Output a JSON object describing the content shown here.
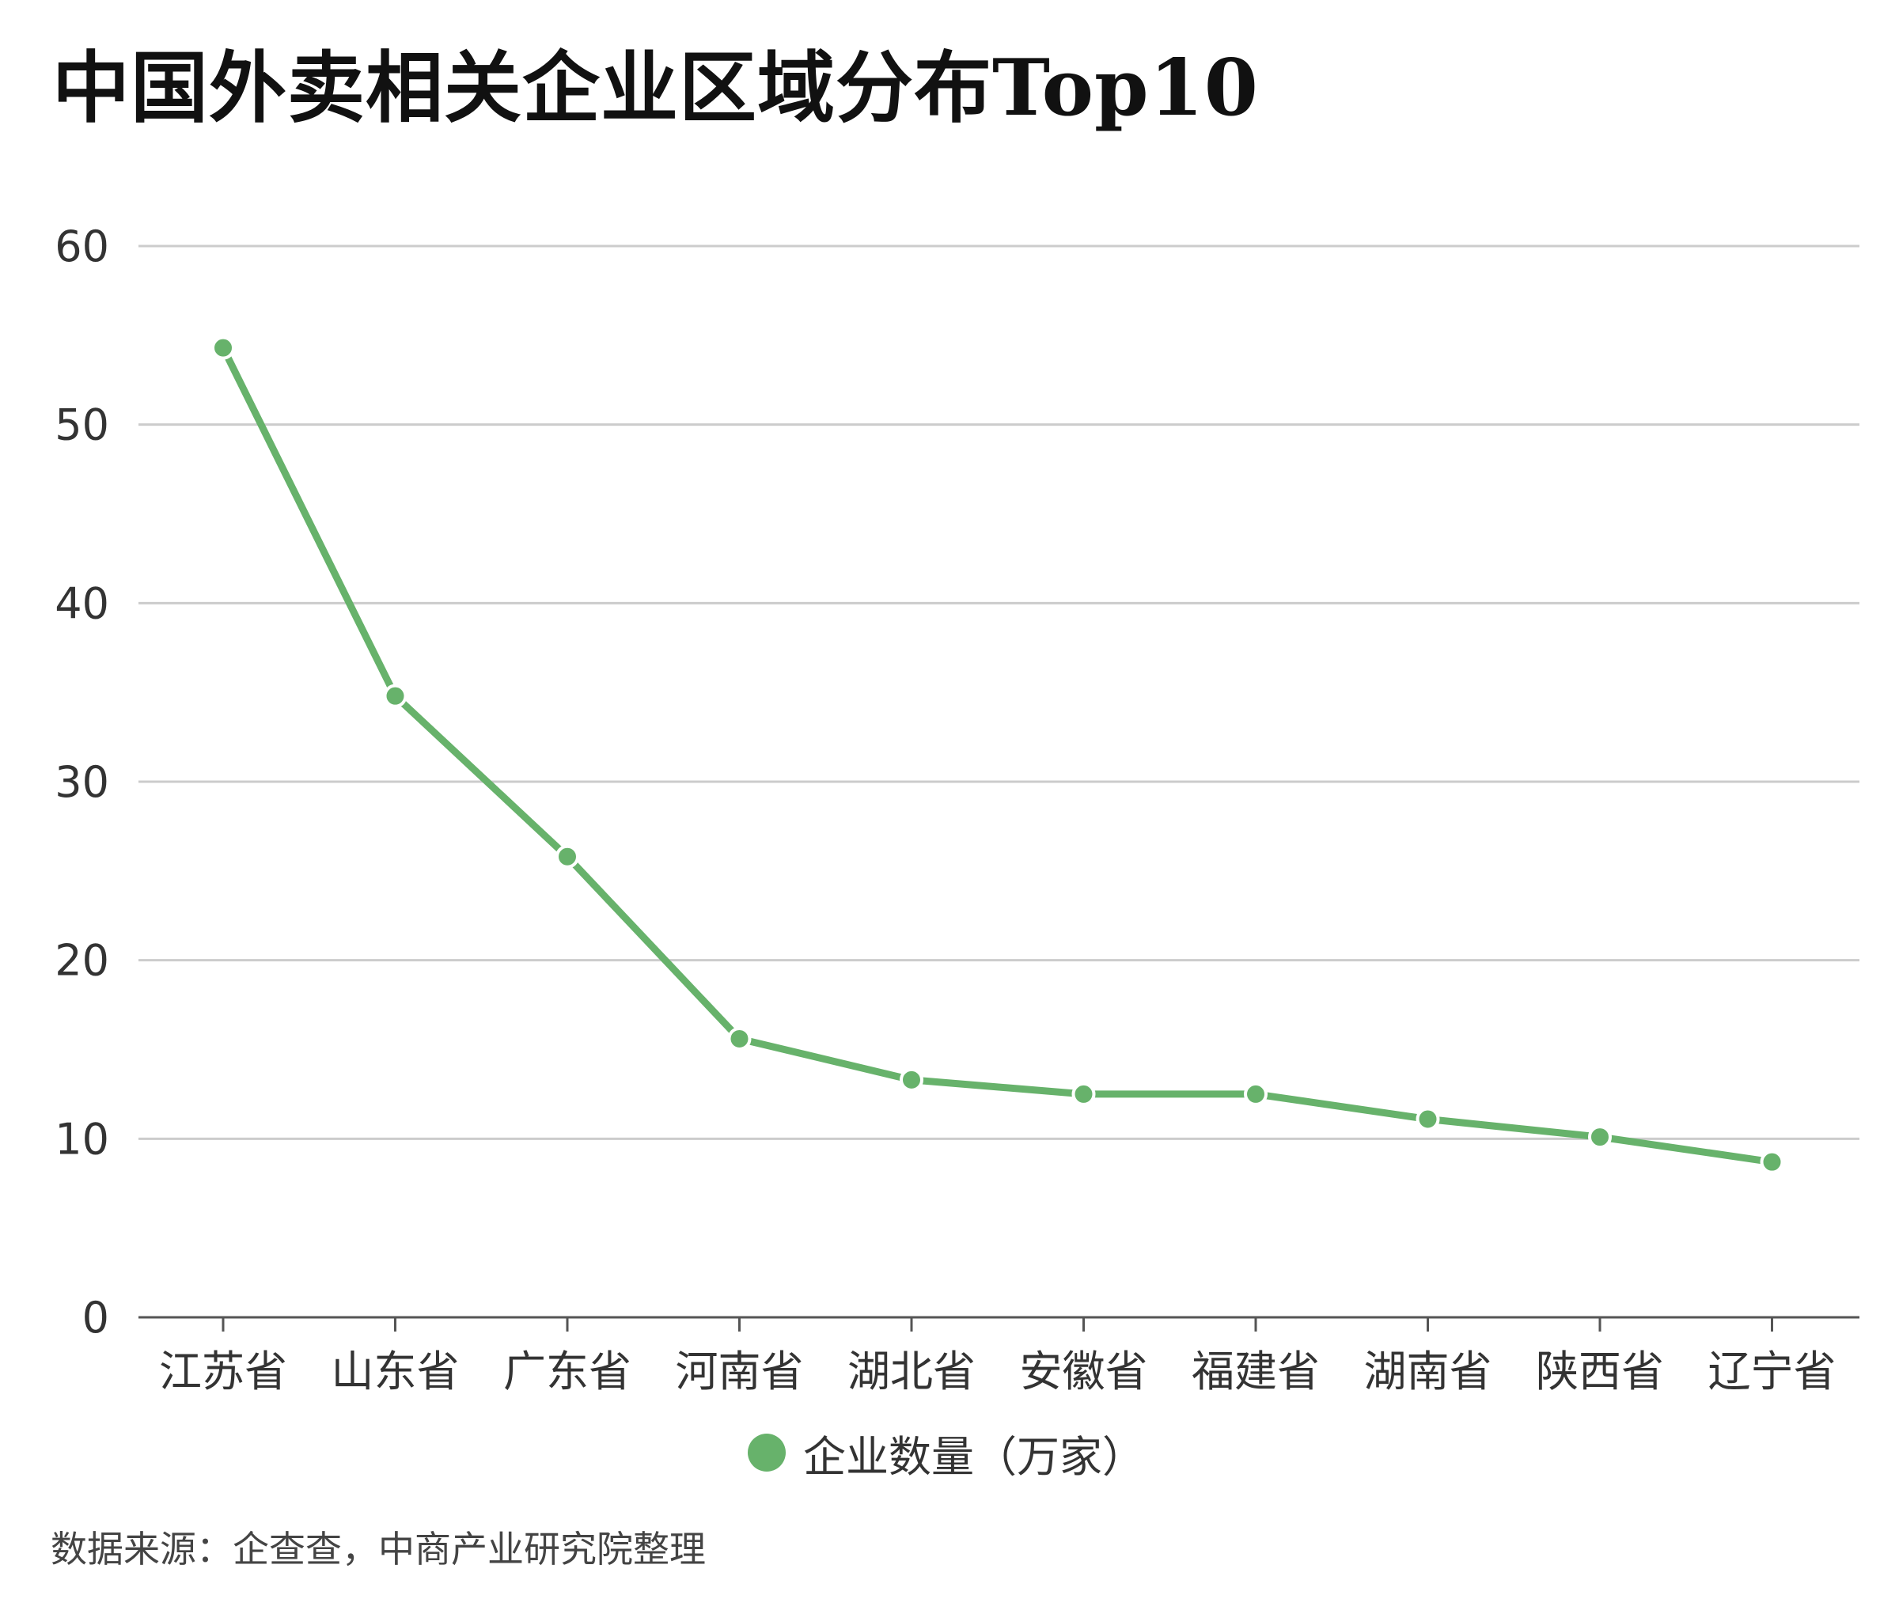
{
  "colors": {
    "series": "#67b26b",
    "grid": "#cccccc",
    "axis": "#555555",
    "text": "#333333"
  },
  "chart_data": {
    "type": "line",
    "title": "中国外卖相关企业区域分布Top10",
    "categories": [
      "江苏省",
      "山东省",
      "广东省",
      "河南省",
      "湖北省",
      "安徽省",
      "福建省",
      "湖南省",
      "陕西省",
      "辽宁省"
    ],
    "series": [
      {
        "name": "企业数量（万家）",
        "values": [
          54.3,
          34.8,
          25.8,
          15.6,
          13.3,
          12.5,
          12.5,
          11.1,
          10.1,
          8.7
        ]
      }
    ],
    "yticks": [
      0,
      10,
      20,
      30,
      40,
      50,
      60
    ],
    "ylim": [
      0,
      60
    ],
    "grid": true,
    "legend_position": "bottom-center"
  },
  "footer": {
    "source": "数据来源：企查查，中商产业研究院整理"
  }
}
